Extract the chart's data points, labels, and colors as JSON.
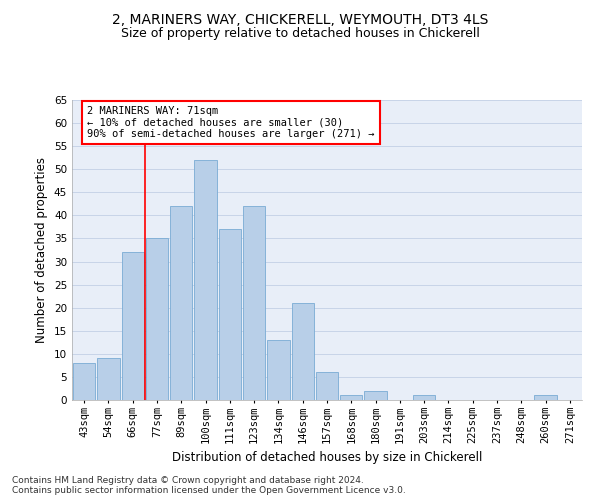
{
  "title1": "2, MARINERS WAY, CHICKERELL, WEYMOUTH, DT3 4LS",
  "title2": "Size of property relative to detached houses in Chickerell",
  "xlabel": "Distribution of detached houses by size in Chickerell",
  "ylabel": "Number of detached properties",
  "categories": [
    "43sqm",
    "54sqm",
    "66sqm",
    "77sqm",
    "89sqm",
    "100sqm",
    "111sqm",
    "123sqm",
    "134sqm",
    "146sqm",
    "157sqm",
    "168sqm",
    "180sqm",
    "191sqm",
    "203sqm",
    "214sqm",
    "225sqm",
    "237sqm",
    "248sqm",
    "260sqm",
    "271sqm"
  ],
  "values": [
    8,
    9,
    32,
    35,
    42,
    52,
    37,
    42,
    13,
    21,
    6,
    1,
    2,
    0,
    1,
    0,
    0,
    0,
    0,
    1,
    0
  ],
  "bar_color": "#b8cfe8",
  "bar_edge_color": "#7aabd4",
  "annotation_text": "2 MARINERS WAY: 71sqm\n← 10% of detached houses are smaller (30)\n90% of semi-detached houses are larger (271) →",
  "annotation_box_color": "white",
  "annotation_box_edge": "red",
  "vline_color": "red",
  "ylim": [
    0,
    65
  ],
  "yticks": [
    0,
    5,
    10,
    15,
    20,
    25,
    30,
    35,
    40,
    45,
    50,
    55,
    60,
    65
  ],
  "grid_color": "#c8d4e8",
  "bg_color": "#e8eef8",
  "footer1": "Contains HM Land Registry data © Crown copyright and database right 2024.",
  "footer2": "Contains public sector information licensed under the Open Government Licence v3.0.",
  "title1_fontsize": 10,
  "title2_fontsize": 9,
  "axis_label_fontsize": 8.5,
  "tick_fontsize": 7.5,
  "footer_fontsize": 6.5,
  "vline_x": 2.5
}
